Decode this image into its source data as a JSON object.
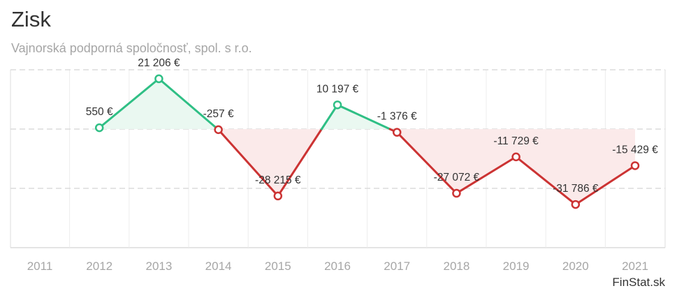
{
  "header": {
    "title": "Zisk",
    "subtitle": "Vajnorská podporná spoločnosť, spol. s r.o."
  },
  "credit": "FinStat.sk",
  "colors": {
    "positive": "#2fbf85",
    "negative": "#cc3333",
    "positive_fill": "#eaf8f1",
    "negative_fill": "#fbeaea",
    "grid": "#dcdcdc",
    "axis_text": "#a6a6a6",
    "label_text": "#333333"
  },
  "chart_data": {
    "type": "line",
    "categories": [
      "2011",
      "2012",
      "2013",
      "2014",
      "2015",
      "2016",
      "2017",
      "2018",
      "2019",
      "2020",
      "2021"
    ],
    "values": [
      null,
      550,
      21206,
      -257,
      -28215,
      10197,
      -1376,
      -27072,
      -11729,
      -31786,
      -15429
    ],
    "data_labels": [
      "",
      "550 €",
      "21 206 €",
      "-257 €",
      "-28 215 €",
      "10 197 €",
      "-1 376 €",
      "-27 072 €",
      "-11 729 €",
      "-31 786 €",
      "-15 429 €"
    ],
    "ylim": [
      -50000,
      25000
    ],
    "y_gridlines": [
      -25000,
      0,
      25000
    ],
    "grid": true,
    "legend": "none"
  }
}
